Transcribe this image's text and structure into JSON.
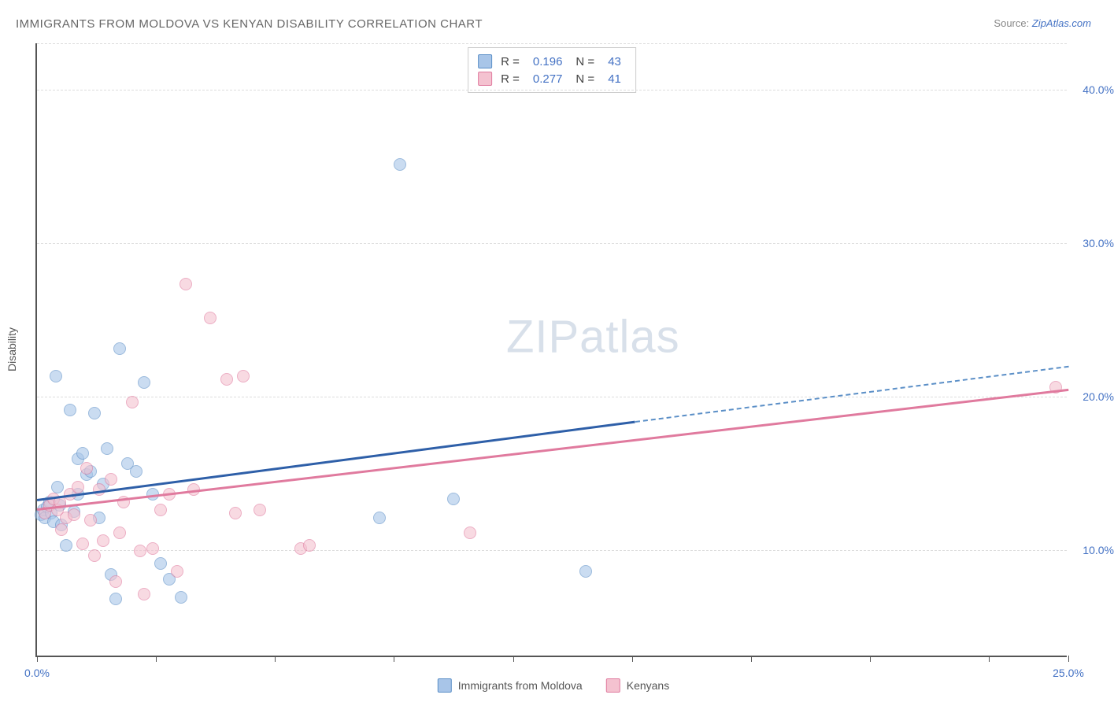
{
  "title": "IMMIGRANTS FROM MOLDOVA VS KENYAN DISABILITY CORRELATION CHART",
  "source_label": "Source:",
  "source_name": "ZipAtlas.com",
  "watermark_a": "ZIP",
  "watermark_b": "atlas",
  "y_axis_label": "Disability",
  "x_range": [
    0,
    25
  ],
  "y_range": [
    3,
    43
  ],
  "x_ticks": [
    0,
    2.88,
    5.77,
    8.65,
    11.54,
    14.42,
    17.31,
    20.19,
    23.08,
    25
  ],
  "x_tick_labels": {
    "0": "0.0%",
    "25": "25.0%"
  },
  "y_grid": [
    10,
    20,
    30,
    40,
    43
  ],
  "y_tick_labels": {
    "10": "10.0%",
    "20": "20.0%",
    "30": "30.0%",
    "40": "40.0%"
  },
  "series": [
    {
      "name": "Immigrants from Moldova",
      "color_class": "blue",
      "swatch_fill": "#a8c5e8",
      "swatch_border": "#5b8fc7",
      "R": "0.196",
      "N": "43",
      "trend": {
        "x1": 0,
        "y1": 13.3,
        "x2_solid": 14.5,
        "y2_solid": 18.4,
        "x2_dashed": 25,
        "y2_dashed": 22.0
      },
      "points": [
        [
          0.1,
          12.2
        ],
        [
          0.15,
          12.5
        ],
        [
          0.2,
          12.0
        ],
        [
          0.25,
          12.7
        ],
        [
          0.3,
          13.0
        ],
        [
          0.35,
          12.3
        ],
        [
          0.4,
          11.7
        ],
        [
          0.45,
          21.2
        ],
        [
          0.5,
          14.0
        ],
        [
          0.55,
          12.8
        ],
        [
          0.6,
          11.5
        ],
        [
          0.7,
          10.2
        ],
        [
          0.8,
          19.0
        ],
        [
          0.9,
          12.4
        ],
        [
          1.0,
          13.5
        ],
        [
          1.0,
          15.8
        ],
        [
          1.1,
          16.2
        ],
        [
          1.2,
          14.8
        ],
        [
          1.3,
          15.0
        ],
        [
          1.4,
          18.8
        ],
        [
          1.5,
          12.0
        ],
        [
          1.6,
          14.2
        ],
        [
          1.7,
          16.5
        ],
        [
          1.8,
          8.3
        ],
        [
          1.9,
          6.7
        ],
        [
          2.0,
          23.0
        ],
        [
          2.2,
          15.5
        ],
        [
          2.4,
          15.0
        ],
        [
          2.6,
          20.8
        ],
        [
          2.8,
          13.5
        ],
        [
          3.0,
          9.0
        ],
        [
          3.2,
          8.0
        ],
        [
          3.5,
          6.8
        ],
        [
          8.3,
          12.0
        ],
        [
          8.8,
          35.0
        ],
        [
          10.1,
          13.2
        ],
        [
          13.3,
          8.5
        ]
      ]
    },
    {
      "name": "Kenyans",
      "color_class": "pink",
      "swatch_fill": "#f4c2d0",
      "swatch_border": "#e07a9e",
      "R": "0.277",
      "N": "41",
      "trend": {
        "x1": 0,
        "y1": 12.7,
        "x2_solid": 25,
        "y2_solid": 20.5
      },
      "points": [
        [
          0.2,
          12.3
        ],
        [
          0.3,
          12.8
        ],
        [
          0.4,
          13.2
        ],
        [
          0.5,
          12.5
        ],
        [
          0.55,
          13.0
        ],
        [
          0.6,
          11.2
        ],
        [
          0.7,
          12.0
        ],
        [
          0.8,
          13.5
        ],
        [
          0.9,
          12.2
        ],
        [
          1.0,
          14.0
        ],
        [
          1.1,
          10.3
        ],
        [
          1.2,
          15.2
        ],
        [
          1.3,
          11.8
        ],
        [
          1.4,
          9.5
        ],
        [
          1.5,
          13.8
        ],
        [
          1.6,
          10.5
        ],
        [
          1.8,
          14.5
        ],
        [
          1.9,
          7.8
        ],
        [
          2.0,
          11.0
        ],
        [
          2.1,
          13.0
        ],
        [
          2.3,
          19.5
        ],
        [
          2.5,
          9.8
        ],
        [
          2.6,
          7.0
        ],
        [
          2.8,
          10.0
        ],
        [
          3.0,
          12.5
        ],
        [
          3.2,
          13.5
        ],
        [
          3.4,
          8.5
        ],
        [
          3.6,
          27.2
        ],
        [
          3.8,
          13.8
        ],
        [
          4.2,
          25.0
        ],
        [
          4.6,
          21.0
        ],
        [
          4.8,
          12.3
        ],
        [
          5.0,
          21.2
        ],
        [
          5.4,
          12.5
        ],
        [
          6.4,
          10.0
        ],
        [
          6.6,
          10.2
        ],
        [
          10.5,
          11.0
        ],
        [
          24.7,
          20.5
        ]
      ]
    }
  ],
  "legend_stat_R_label": "R  =",
  "legend_stat_N_label": "N  ="
}
